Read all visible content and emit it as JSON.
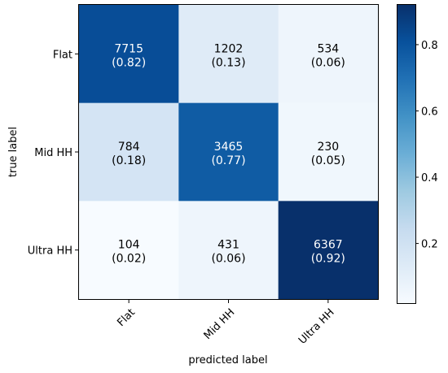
{
  "chart_data": {
    "type": "heatmap",
    "subtype": "confusion-matrix",
    "title": "",
    "xlabel": "predicted label",
    "ylabel": "true label",
    "x_categories": [
      "Flat",
      "Mid HH",
      "Ultra HH"
    ],
    "y_categories": [
      "Flat",
      "Mid HH",
      "Ultra HH"
    ],
    "counts": [
      [
        7715,
        1202,
        534
      ],
      [
        784,
        3465,
        230
      ],
      [
        104,
        431,
        6367
      ]
    ],
    "normalized": [
      [
        0.82,
        0.13,
        0.06
      ],
      [
        0.18,
        0.77,
        0.05
      ],
      [
        0.02,
        0.06,
        0.92
      ]
    ],
    "normalized_labels": [
      [
        "(0.82)",
        "(0.13)",
        "(0.06)"
      ],
      [
        "(0.18)",
        "(0.77)",
        "(0.05)"
      ],
      [
        "(0.02)",
        "(0.06)",
        "(0.92)"
      ]
    ],
    "colormap": "Blues",
    "color_range": [
      0.02,
      0.92
    ],
    "colorbar": {
      "ticks": [
        0.2,
        0.4,
        0.6,
        0.8
      ],
      "tick_labels": [
        "0.2",
        "0.4",
        "0.6",
        "0.8"
      ]
    },
    "text_color_dark": "#000000",
    "text_color_light": "#ffffff"
  }
}
